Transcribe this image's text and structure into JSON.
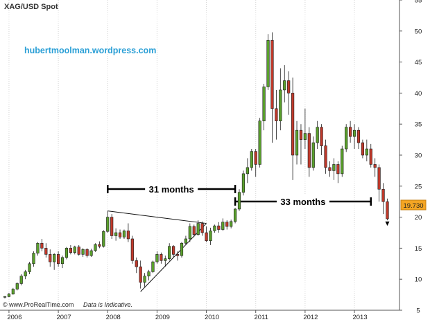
{
  "chart_data": {
    "type": "candlestick",
    "title": "XAG/USD Spot",
    "watermark": "hubertmoolman.wordpress.com",
    "footer_left": "© www.ProRealTime.com",
    "footer_right": "Data is Indicative.",
    "last_price_label": "19.730",
    "ylim": [
      5,
      55
    ],
    "y_ticks": [
      5,
      10,
      15,
      20,
      25,
      30,
      35,
      40,
      45,
      50,
      55
    ],
    "x_ticks": [
      {
        "label": "2006",
        "index": 1
      },
      {
        "label": "2007",
        "index": 13
      },
      {
        "label": "2008",
        "index": 25
      },
      {
        "label": "2009",
        "index": 37
      },
      {
        "label": "2010",
        "index": 49
      },
      {
        "label": "2011",
        "index": 61
      },
      {
        "label": "2012",
        "index": 73
      },
      {
        "label": "2013",
        "index": 85
      }
    ],
    "gridlines": "dotted vertical at year starts",
    "colors": {
      "up": "#5aa02c",
      "down": "#c0392b",
      "price_badge": "#f5a623",
      "watermark": "#2a9fd6"
    },
    "candles": [
      [
        7.1,
        7.3,
        6.9,
        7.2
      ],
      [
        7.2,
        7.8,
        7.1,
        7.6
      ],
      [
        7.6,
        8.6,
        7.5,
        8.4
      ],
      [
        8.4,
        9.5,
        8.2,
        9.3
      ],
      [
        9.3,
        10.8,
        9.0,
        10.5
      ],
      [
        10.5,
        11.5,
        10.0,
        11.2
      ],
      [
        11.2,
        12.8,
        10.8,
        12.5
      ],
      [
        12.5,
        14.5,
        12.0,
        14.2
      ],
      [
        14.2,
        16.0,
        13.8,
        15.8
      ],
      [
        15.8,
        16.5,
        14.5,
        15.0
      ],
      [
        15.0,
        15.8,
        13.5,
        14.0
      ],
      [
        14.0,
        14.8,
        12.0,
        12.8
      ],
      [
        12.8,
        14.2,
        11.5,
        14.0
      ],
      [
        14.0,
        14.5,
        12.0,
        12.5
      ],
      [
        12.5,
        13.8,
        11.8,
        13.5
      ],
      [
        13.5,
        15.2,
        13.2,
        15.0
      ],
      [
        15.0,
        15.5,
        14.0,
        14.3
      ],
      [
        14.3,
        15.4,
        14.0,
        15.2
      ],
      [
        15.2,
        15.5,
        13.8,
        14.0
      ],
      [
        14.0,
        15.0,
        13.6,
        14.8
      ],
      [
        14.8,
        15.0,
        13.5,
        13.8
      ],
      [
        13.8,
        14.9,
        13.6,
        14.6
      ],
      [
        14.6,
        15.8,
        14.4,
        15.6
      ],
      [
        15.6,
        16.1,
        15.0,
        15.3
      ],
      [
        15.3,
        17.9,
        15.1,
        17.7
      ],
      [
        17.7,
        21.0,
        17.5,
        20.0
      ],
      [
        20.0,
        20.5,
        16.5,
        17.0
      ],
      [
        17.0,
        18.2,
        16.2,
        17.5
      ],
      [
        17.5,
        18.0,
        16.5,
        16.8
      ],
      [
        16.8,
        18.0,
        16.5,
        17.8
      ],
      [
        17.8,
        19.0,
        16.0,
        16.5
      ],
      [
        16.5,
        17.0,
        12.5,
        13.0
      ],
      [
        13.0,
        13.5,
        11.0,
        12.0
      ],
      [
        12.0,
        13.0,
        8.5,
        9.5
      ],
      [
        9.5,
        11.0,
        8.8,
        10.5
      ],
      [
        10.5,
        11.5,
        9.8,
        11.2
      ],
      [
        11.2,
        13.0,
        11.0,
        12.8
      ],
      [
        12.8,
        14.5,
        12.5,
        14.0
      ],
      [
        14.0,
        14.3,
        12.5,
        13.0
      ],
      [
        13.0,
        13.8,
        12.0,
        13.3
      ],
      [
        13.3,
        15.8,
        13.0,
        15.3
      ],
      [
        15.3,
        15.5,
        13.5,
        14.0
      ],
      [
        14.0,
        14.5,
        13.0,
        13.8
      ],
      [
        13.8,
        16.0,
        13.5,
        15.8
      ],
      [
        15.8,
        17.0,
        15.5,
        16.5
      ],
      [
        16.5,
        19.0,
        16.0,
        18.5
      ],
      [
        18.5,
        18.8,
        16.8,
        17.2
      ],
      [
        17.2,
        19.5,
        17.0,
        19.0
      ],
      [
        19.0,
        19.3,
        17.0,
        17.5
      ],
      [
        17.5,
        18.5,
        16.0,
        16.2
      ],
      [
        16.2,
        18.3,
        15.5,
        17.8
      ],
      [
        17.8,
        18.8,
        17.5,
        18.6
      ],
      [
        18.6,
        19.2,
        17.5,
        18.0
      ],
      [
        18.0,
        19.8,
        17.8,
        19.2
      ],
      [
        19.2,
        19.5,
        18.0,
        18.5
      ],
      [
        18.5,
        19.6,
        18.2,
        19.3
      ],
      [
        19.3,
        21.5,
        19.0,
        21.3
      ],
      [
        21.3,
        24.5,
        21.0,
        24.0
      ],
      [
        24.0,
        27.5,
        23.5,
        27.0
      ],
      [
        27.0,
        29.5,
        25.5,
        28.0
      ],
      [
        28.0,
        31.0,
        27.5,
        30.6
      ],
      [
        30.6,
        31.0,
        26.5,
        28.5
      ],
      [
        28.5,
        36.0,
        28.0,
        35.5
      ],
      [
        35.5,
        41.5,
        34.0,
        41.0
      ],
      [
        41.0,
        49.5,
        40.5,
        48.5
      ],
      [
        48.5,
        49.8,
        32.0,
        37.5
      ],
      [
        37.5,
        40.5,
        32.5,
        35.5
      ],
      [
        35.5,
        44.0,
        34.0,
        40.5
      ],
      [
        40.5,
        44.5,
        38.5,
        42.0
      ],
      [
        42.0,
        43.5,
        36.5,
        40.0
      ],
      [
        40.0,
        42.5,
        26.0,
        30.0
      ],
      [
        30.0,
        35.5,
        28.5,
        34.0
      ],
      [
        34.0,
        35.0,
        28.5,
        32.5
      ],
      [
        32.5,
        37.5,
        31.0,
        33.5
      ],
      [
        33.5,
        34.5,
        26.5,
        28.0
      ],
      [
        28.0,
        33.0,
        27.5,
        32.0
      ],
      [
        32.0,
        35.5,
        31.0,
        34.5
      ],
      [
        34.5,
        35.0,
        30.0,
        31.5
      ],
      [
        31.5,
        32.5,
        27.0,
        28.0
      ],
      [
        28.0,
        29.0,
        26.5,
        27.5
      ],
      [
        27.5,
        29.5,
        26.0,
        28.5
      ],
      [
        28.5,
        29.0,
        25.5,
        27.0
      ],
      [
        27.0,
        31.5,
        26.5,
        31.0
      ],
      [
        31.0,
        35.0,
        30.5,
        34.5
      ],
      [
        34.5,
        35.5,
        32.0,
        33.0
      ],
      [
        33.0,
        35.0,
        31.0,
        34.0
      ],
      [
        34.0,
        34.5,
        31.0,
        32.0
      ],
      [
        32.0,
        32.5,
        29.5,
        30.0
      ],
      [
        30.0,
        32.5,
        29.0,
        31.0
      ],
      [
        31.0,
        31.8,
        28.0,
        28.5
      ],
      [
        28.5,
        29.5,
        26.5,
        28.0
      ],
      [
        28.0,
        28.5,
        22.5,
        24.5
      ],
      [
        24.5,
        25.5,
        20.5,
        22.5
      ],
      [
        22.5,
        23.0,
        19.5,
        19.73
      ]
    ],
    "annotations": [
      {
        "type": "trend_line",
        "points": [
          [
            25,
            21.0
          ],
          [
            49,
            19.0
          ]
        ]
      },
      {
        "type": "trend_line",
        "points": [
          [
            33,
            8.0
          ],
          [
            49,
            19.0
          ]
        ]
      },
      {
        "type": "measure",
        "label": "31 months",
        "from_index": 25,
        "to_index": 56
      },
      {
        "type": "measure",
        "label": "33 months",
        "from_index": 56,
        "to_index": 89
      }
    ]
  }
}
